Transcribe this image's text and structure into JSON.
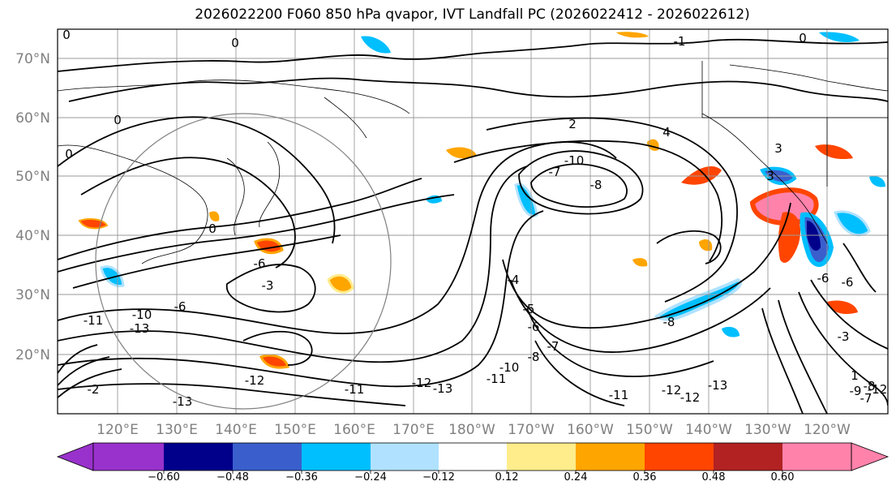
{
  "title": "2026022200 F060 850 hPa qvapor, IVT Landfall PC (2026022412 - 2026022612)",
  "map": {
    "lat_labels": [
      "70°N",
      "60°N",
      "50°N",
      "40°N",
      "30°N",
      "20°N"
    ],
    "lon_labels": [
      "120°E",
      "130°E",
      "140°E",
      "150°E",
      "160°E",
      "170°E",
      "180°W",
      "170°W",
      "160°W",
      "150°W",
      "140°W",
      "130°W",
      "120°W"
    ],
    "contour_labels": [
      "0",
      "0",
      "0",
      "0",
      "-1",
      "0",
      "2",
      "4",
      "-10",
      "-8",
      "-7",
      "3",
      "0",
      "-3",
      "-6",
      "-11",
      "-10",
      "-6",
      "-13",
      "-13",
      "-12",
      "-11",
      "-12",
      "-13",
      "-11",
      "-10",
      "-8",
      "-7",
      "-6",
      "-5",
      "-4",
      "-8",
      "-12",
      "-13",
      "-12",
      "-11",
      "-9",
      "-8",
      "-7",
      "-6",
      "-6",
      "-3",
      "-2",
      "-12",
      "3",
      "1"
    ]
  },
  "colorbar": {
    "ticks": [
      "−0.60",
      "−0.48",
      "−0.36",
      "−0.24",
      "−0.12",
      "0.12",
      "0.24",
      "0.36",
      "0.48",
      "0.60"
    ],
    "colors": [
      "#9932cc",
      "#00008b",
      "#3a5fcd",
      "#00bfff",
      "#b0e2ff",
      "#ffffff",
      "#ffec8b",
      "#ffa500",
      "#ff4500",
      "#b22222",
      "#ff82ab"
    ]
  }
}
